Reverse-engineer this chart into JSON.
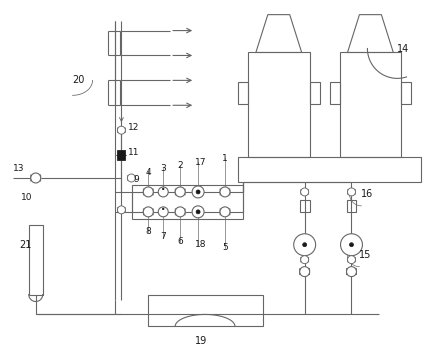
{
  "bg_color": "#ffffff",
  "line_color": "#666666",
  "dark_color": "#1a1a1a",
  "fig_width": 4.43,
  "fig_height": 3.51,
  "dpi": 100
}
